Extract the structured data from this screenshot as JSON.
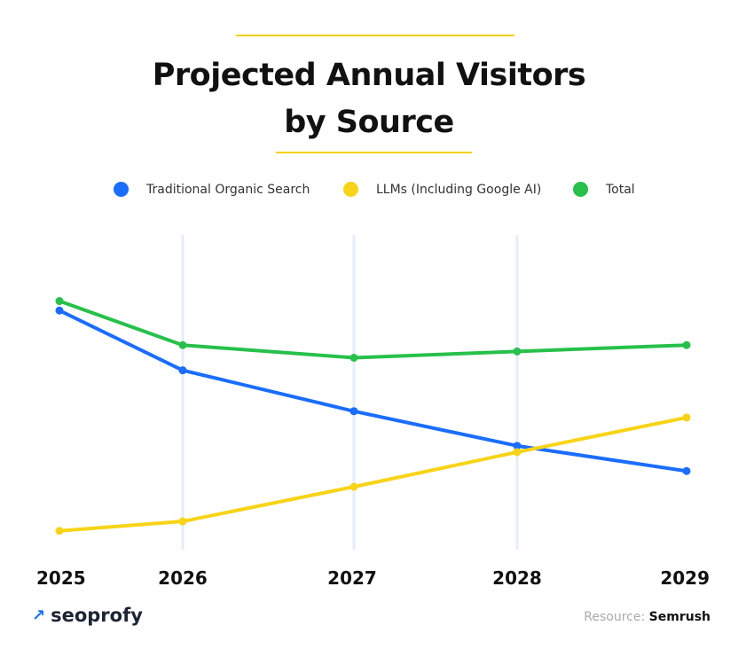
{
  "title_line1": "Projected Annual Visitors",
  "title_line2": "by Source",
  "colors": {
    "accent": "#f5d000",
    "organic": "#1a6dff",
    "llm": "#f7d417",
    "total": "#27c04a",
    "grid": "#e3eef9"
  },
  "chart_data": {
    "type": "line",
    "x": [
      "2025",
      "2026",
      "2027",
      "2028",
      "2029"
    ],
    "ylim": [
      0,
      100
    ],
    "y_axis_shown": false,
    "grid": "vertical lines at 2026, 2027, 2028",
    "legend_placement": "top",
    "series": [
      {
        "name": "Traditional Organic Search",
        "color": "#1a6dff",
        "values": [
          76,
          57,
          44,
          33,
          25
        ]
      },
      {
        "name": "LLMs (Including Google AI)",
        "color": "#f7d417",
        "values": [
          6,
          9,
          20,
          31,
          42
        ]
      },
      {
        "name": "Total",
        "color": "#27c04a",
        "values": [
          79,
          65,
          61,
          63,
          65
        ]
      }
    ]
  },
  "brand": {
    "logo_text": "seoprofy",
    "logo_icon": "arrow-up-right-icon"
  },
  "source": {
    "label": "Resource:",
    "value": "Semrush"
  }
}
